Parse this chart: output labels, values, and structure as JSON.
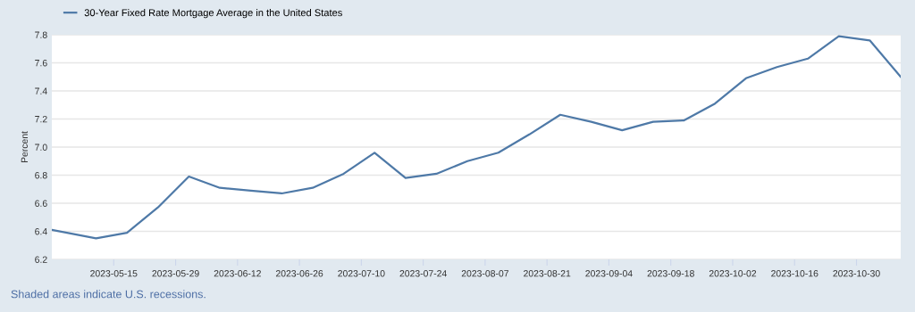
{
  "chart_data": {
    "type": "line",
    "x": [
      "2023-05-01",
      "2023-05-11",
      "2023-05-18",
      "2023-05-25",
      "2023-06-01",
      "2023-06-08",
      "2023-06-15",
      "2023-06-22",
      "2023-06-29",
      "2023-07-06",
      "2023-07-13",
      "2023-07-20",
      "2023-07-27",
      "2023-08-03",
      "2023-08-10",
      "2023-08-17",
      "2023-08-24",
      "2023-08-31",
      "2023-09-07",
      "2023-09-14",
      "2023-09-21",
      "2023-09-28",
      "2023-10-05",
      "2023-10-12",
      "2023-10-19",
      "2023-10-26",
      "2023-11-02",
      "2023-11-09"
    ],
    "series": [
      {
        "name": "30-Year Fixed Rate Mortgage Average in the United States",
        "color": "#4e79a7",
        "values": [
          6.41,
          6.35,
          6.39,
          6.57,
          6.79,
          6.71,
          6.69,
          6.67,
          6.71,
          6.81,
          6.96,
          6.78,
          6.81,
          6.9,
          6.96,
          7.09,
          7.23,
          7.18,
          7.12,
          7.18,
          7.19,
          7.31,
          7.49,
          7.57,
          7.63,
          7.79,
          7.76,
          7.5
        ]
      }
    ],
    "ylabel": "Percent",
    "xlim": [
      "2023-05-01",
      "2023-11-09"
    ],
    "xticks": [
      "2023-05-15",
      "2023-05-29",
      "2023-06-12",
      "2023-06-26",
      "2023-07-10",
      "2023-07-24",
      "2023-08-07",
      "2023-08-21",
      "2023-09-04",
      "2023-09-18",
      "2023-10-02",
      "2023-10-16",
      "2023-10-30"
    ],
    "ylim": [
      6.2,
      7.8
    ],
    "yticks": [
      {
        "value": 6.2,
        "label": "6.2"
      },
      {
        "value": 6.4,
        "label": "6.4"
      },
      {
        "value": 6.6,
        "label": "6.6"
      },
      {
        "value": 6.8,
        "label": "6.8"
      },
      {
        "value": 7.0,
        "label": "7.0"
      },
      {
        "value": 7.2,
        "label": "7.2"
      },
      {
        "value": 7.4,
        "label": "7.4"
      },
      {
        "value": 7.6,
        "label": "7.6"
      },
      {
        "value": 7.8,
        "label": "7.8"
      }
    ],
    "grid": "y",
    "legend": "top left",
    "annotations": [
      "Shaded areas indicate U.S. recessions."
    ]
  }
}
